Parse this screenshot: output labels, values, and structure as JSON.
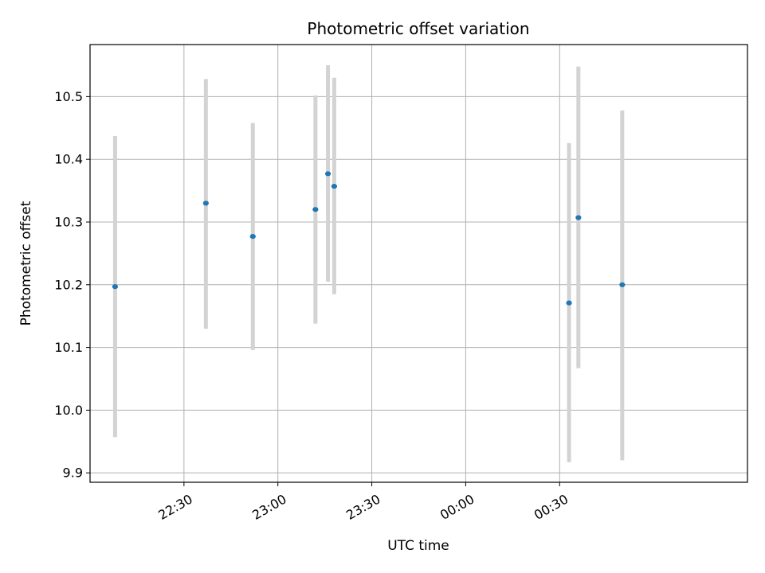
{
  "chart_data": {
    "type": "scatter",
    "title": "Photometric offset variation",
    "xlabel": "UTC time",
    "ylabel": "Photometric offset",
    "x_unit": "UTC time (HH:MM)",
    "xlim": [
      "22:00",
      "01:30"
    ],
    "ylim": [
      9.885,
      10.583
    ],
    "x_ticks": [
      "22:30",
      "23:00",
      "23:30",
      "00:00",
      "00:30"
    ],
    "y_ticks": [
      "9.9",
      "10.0",
      "10.1",
      "10.2",
      "10.3",
      "10.4",
      "10.5"
    ],
    "grid": true,
    "legend": "none",
    "colors": {
      "point": "#1f77b4",
      "errorbar": "#d3d3d3",
      "grid": "#b0b0b0"
    },
    "points": [
      {
        "time": "22:08",
        "y": 10.197,
        "y_low": 9.957,
        "y_high": 10.437
      },
      {
        "time": "22:37",
        "y": 10.33,
        "y_low": 10.13,
        "y_high": 10.528
      },
      {
        "time": "22:52",
        "y": 10.277,
        "y_low": 10.096,
        "y_high": 10.458
      },
      {
        "time": "23:12",
        "y": 10.32,
        "y_low": 10.138,
        "y_high": 10.502
      },
      {
        "time": "23:16",
        "y": 10.377,
        "y_low": 10.205,
        "y_high": 10.55
      },
      {
        "time": "23:18",
        "y": 10.357,
        "y_low": 10.185,
        "y_high": 10.53
      },
      {
        "time": "00:33",
        "y": 10.171,
        "y_low": 9.917,
        "y_high": 10.426
      },
      {
        "time": "00:36",
        "y": 10.307,
        "y_low": 10.067,
        "y_high": 10.548
      },
      {
        "time": "00:50",
        "y": 10.2,
        "y_low": 9.92,
        "y_high": 10.478
      }
    ]
  }
}
